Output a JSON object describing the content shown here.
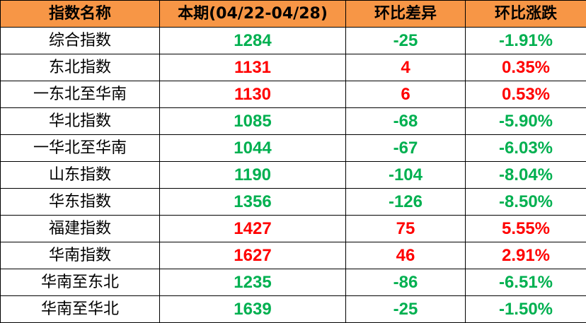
{
  "headers": [
    "指数名称",
    "本期(04/22-04/28)",
    "环比差异",
    "环比涨跌"
  ],
  "colors": {
    "header_bg": "#F79646",
    "up": "#FF0000",
    "down": "#00B050"
  },
  "rows": [
    {
      "name": "综合指数",
      "value": "1284",
      "diff": "-25",
      "pct": "-1.91%",
      "trend": "down"
    },
    {
      "name": "东北指数",
      "value": "1131",
      "diff": "4",
      "pct": "0.35%",
      "trend": "up"
    },
    {
      "name": "一东北至华南",
      "value": "1130",
      "diff": "6",
      "pct": "0.53%",
      "trend": "up"
    },
    {
      "name": "华北指数",
      "value": "1085",
      "diff": "-68",
      "pct": "-5.90%",
      "trend": "down"
    },
    {
      "name": "一华北至华南",
      "value": "1044",
      "diff": "-67",
      "pct": "-6.03%",
      "trend": "down"
    },
    {
      "name": "山东指数",
      "value": "1190",
      "diff": "-104",
      "pct": "-8.04%",
      "trend": "down"
    },
    {
      "name": "华东指数",
      "value": "1356",
      "diff": "-126",
      "pct": "-8.50%",
      "trend": "down"
    },
    {
      "name": "福建指数",
      "value": "1427",
      "diff": "75",
      "pct": "5.55%",
      "trend": "up"
    },
    {
      "name": "华南指数",
      "value": "1627",
      "diff": "46",
      "pct": "2.91%",
      "trend": "up"
    },
    {
      "name": "华南至东北",
      "value": "1235",
      "diff": "-86",
      "pct": "-6.51%",
      "trend": "down"
    },
    {
      "name": "华南至华北",
      "value": "1639",
      "diff": "-25",
      "pct": "-1.50%",
      "trend": "down"
    }
  ]
}
